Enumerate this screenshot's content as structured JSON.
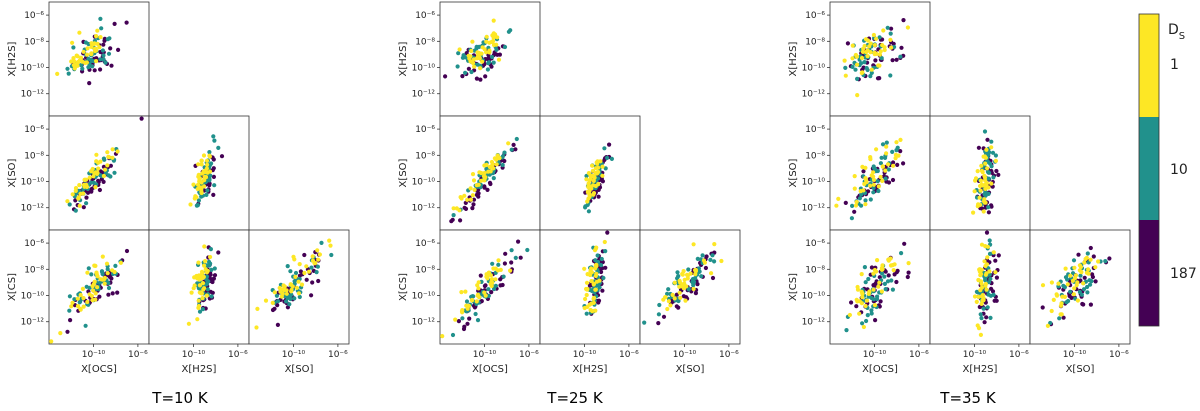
{
  "chart_data": {
    "type": "scatter",
    "layout": "corner-plot",
    "groups": [
      {
        "title": "T=10 K",
        "seed": 11,
        "style": [
          0.3,
          0.3,
          0.3,
          0.3,
          0.3,
          0.3
        ]
      },
      {
        "title": "T=25 K",
        "seed": 29,
        "style": [
          0.2,
          0.1,
          0.1,
          0.3,
          0.5,
          0.3
        ]
      },
      {
        "title": "T=35 K",
        "seed": 47,
        "style": [
          0.6,
          0.9,
          0.9,
          0.9,
          0.9,
          0.9
        ]
      }
    ],
    "variables": [
      "X[OCS]",
      "X[H2S]",
      "X[SO]",
      "X[CS]"
    ],
    "x_variables": [
      "X[OCS]",
      "X[H2S]",
      "X[SO]"
    ],
    "y_variables": [
      "X[H2S]",
      "X[SO]",
      "X[CS]"
    ],
    "axis_scale": "log",
    "x_range_log10": [
      -14,
      -5
    ],
    "y_range_log10": [
      -13.7,
      -5
    ],
    "x_tick_exponents": [
      -10,
      -6
    ],
    "y_tick_exponents": [
      -6,
      -8,
      -10,
      -12
    ],
    "x_tick_labels": [
      "10⁻¹⁰",
      "10⁻⁶"
    ],
    "y_tick_labels": [
      "10⁻⁶",
      "10⁻⁸",
      "10⁻¹⁰",
      "10⁻¹²"
    ],
    "colorbar": {
      "title": "D",
      "title_subscript": "S",
      "categories": [
        {
          "label": "1",
          "color": "#fde725"
        },
        {
          "label": "10",
          "color": "#21918c"
        },
        {
          "label": "187",
          "color": "#440154"
        }
      ]
    },
    "points_per_category": 40
  }
}
